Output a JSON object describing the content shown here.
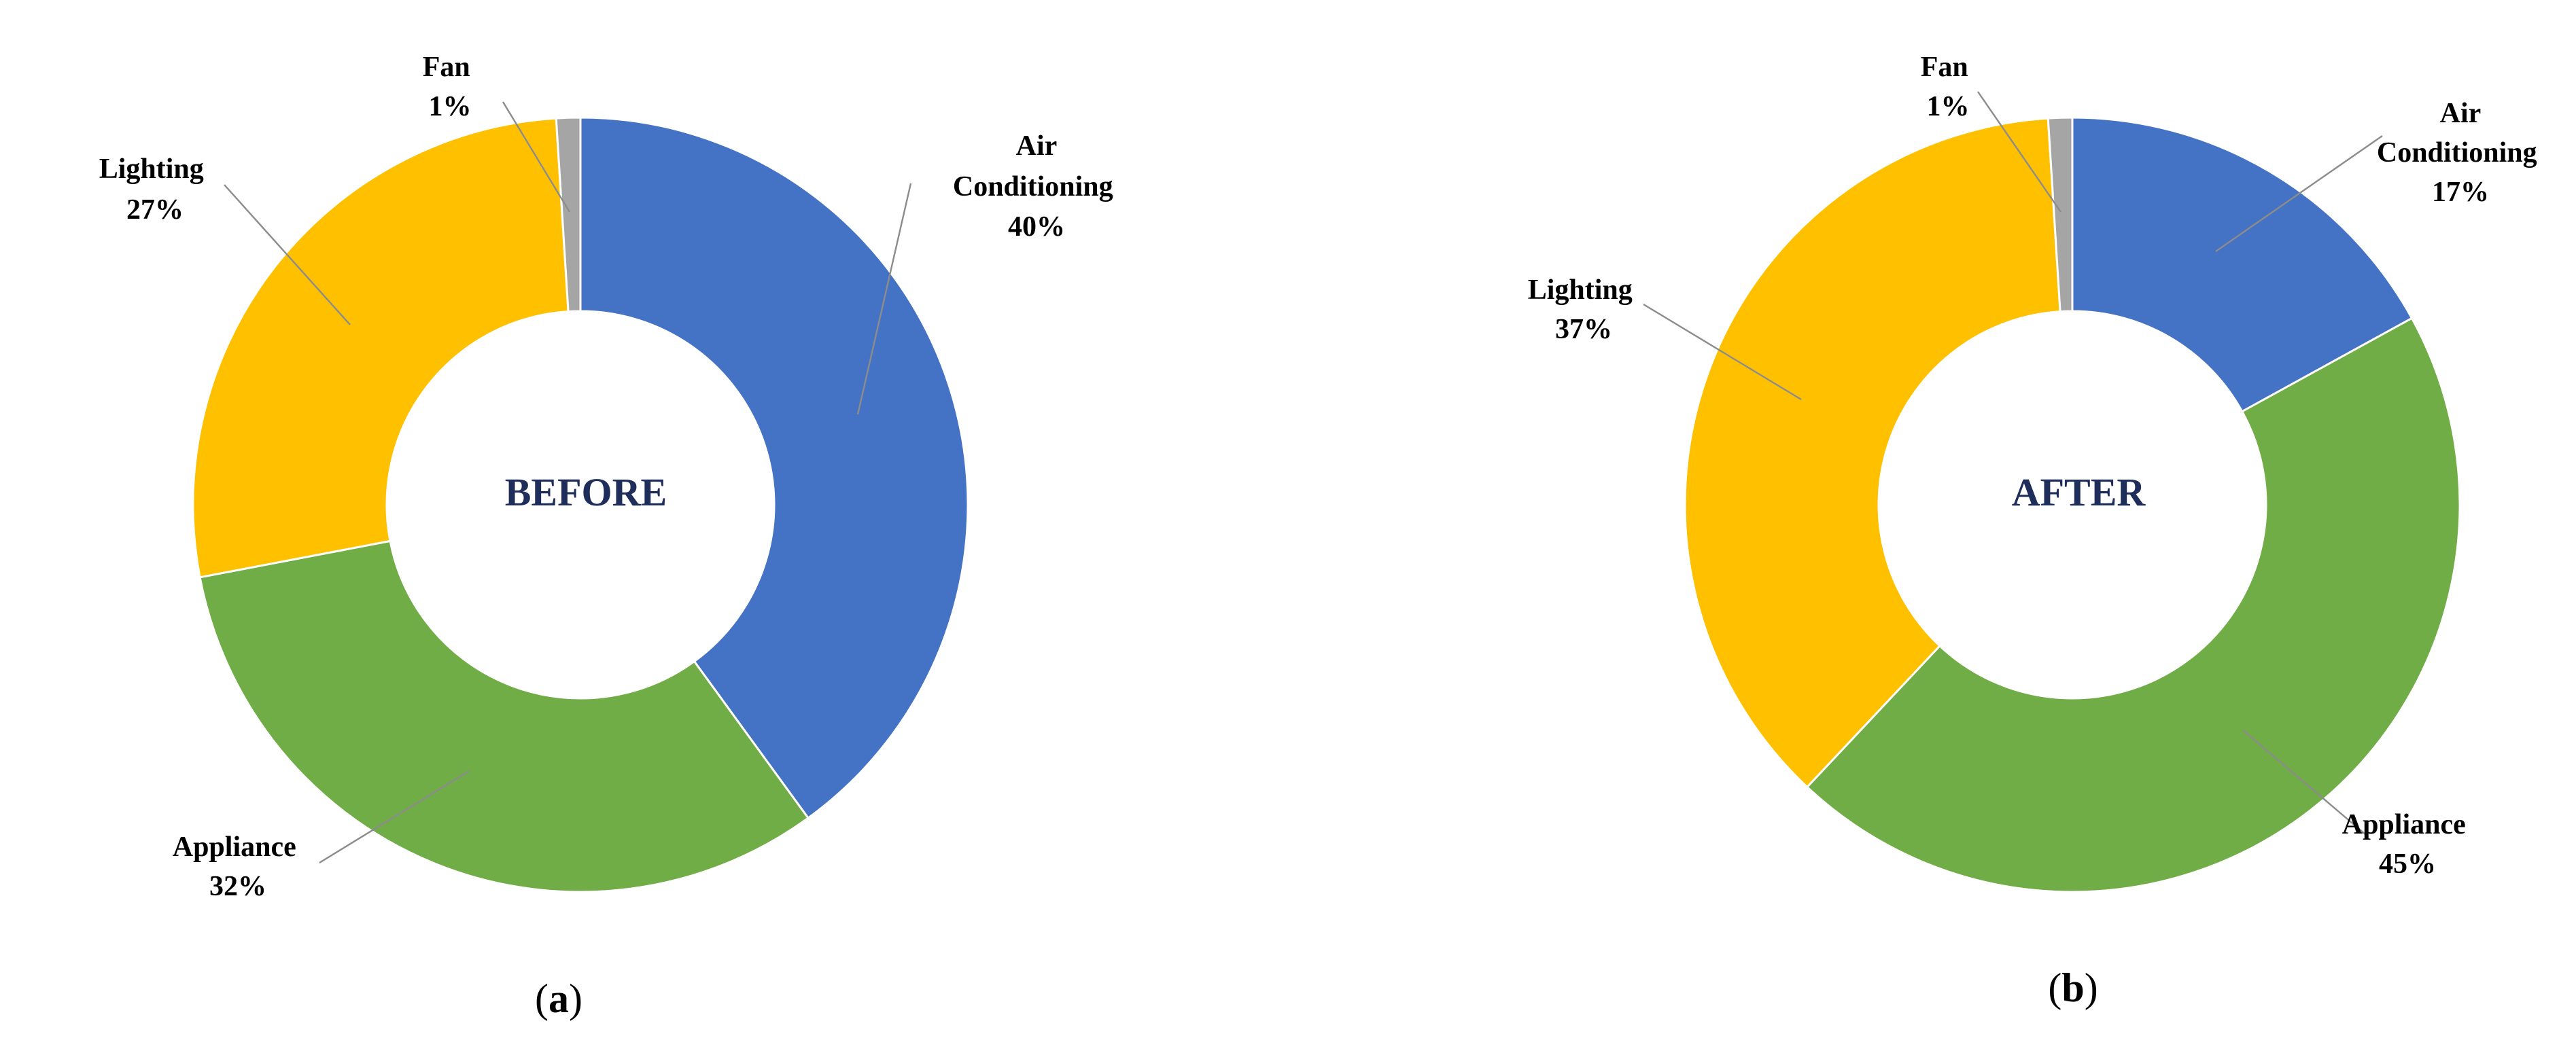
{
  "colors": {
    "air_conditioning": "#4472C4",
    "appliance": "#70AD47",
    "lighting": "#FFC000",
    "fan": "#A5A5A5"
  },
  "chart_data": [
    {
      "type": "pie",
      "donut": true,
      "center_label": "BEFORE",
      "caption": {
        "open": "(",
        "letter": "a",
        "close": ")"
      },
      "slices": [
        {
          "key": "air_conditioning",
          "label": "Air Conditioning",
          "value": 40,
          "value_label": "40%"
        },
        {
          "key": "appliance",
          "label": "Appliance",
          "value": 32,
          "value_label": "32%"
        },
        {
          "key": "lighting",
          "label": "Lighting",
          "value": 27,
          "value_label": "27%"
        },
        {
          "key": "fan",
          "label": "Fan",
          "value": 1,
          "value_label": "1%"
        }
      ]
    },
    {
      "type": "pie",
      "donut": true,
      "center_label": "AFTER",
      "caption": {
        "open": "(",
        "letter": "b",
        "close": ")"
      },
      "slices": [
        {
          "key": "air_conditioning",
          "label": "Air Conditioning",
          "value": 17,
          "value_label": "17%"
        },
        {
          "key": "appliance",
          "label": "Appliance",
          "value": 45,
          "value_label": "45%"
        },
        {
          "key": "lighting",
          "label": "Lighting",
          "value": 37,
          "value_label": "37%"
        },
        {
          "key": "fan",
          "label": "Fan",
          "value": 1,
          "value_label": "1%"
        }
      ]
    }
  ]
}
